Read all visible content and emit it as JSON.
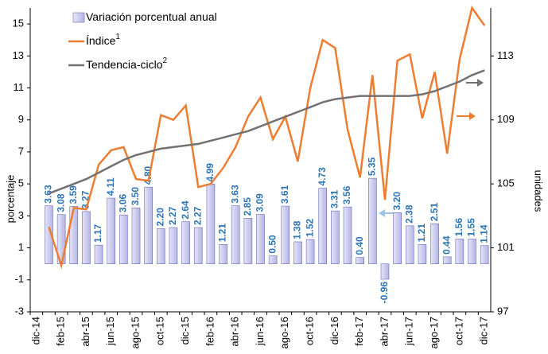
{
  "chart_data": {
    "type": "bar_line",
    "y_label": "porcentaje",
    "y2_label": "unidades",
    "categories": [
      "dic-14",
      null,
      "feb-15",
      null,
      "abr-15",
      null,
      "jun-15",
      null,
      "ago-15",
      null,
      "oct-15",
      null,
      "dic-15",
      null,
      "feb-16",
      null,
      "abr-16",
      null,
      "jun-16",
      null,
      "ago-16",
      null,
      "oct-16",
      null,
      "dic-16",
      null,
      "feb-17",
      null,
      "abr-17",
      null,
      "jun-17",
      null,
      "ago-17",
      null,
      "oct-17",
      null,
      "dic-17"
    ],
    "ylim": [
      -3,
      16
    ],
    "yticks": [
      -3,
      -1,
      1,
      3,
      5,
      7,
      9,
      11,
      13,
      15
    ],
    "y2lim": [
      97,
      116
    ],
    "y2ticks": [
      97,
      101,
      105,
      109,
      113
    ],
    "series": [
      {
        "name": "Variación porcentual anual",
        "kind": "bar",
        "color": "#b4b4e6",
        "values": [
          null,
          3.63,
          3.08,
          3.59,
          3.27,
          1.17,
          4.11,
          3.06,
          3.5,
          4.8,
          2.2,
          2.27,
          2.64,
          2.27,
          4.99,
          1.21,
          3.63,
          2.85,
          3.09,
          0.5,
          3.61,
          1.38,
          1.52,
          4.73,
          3.31,
          3.56,
          0.4,
          5.35,
          -0.96,
          3.2,
          2.38,
          1.21,
          2.51,
          0.44,
          1.56,
          1.55,
          1.14
        ],
        "value_labels": [
          null,
          "3.63",
          "3.08",
          "3.59",
          "3.27",
          "1.17",
          "4.11",
          "3.06",
          "3.50",
          "4.80",
          "2.20",
          "2.27",
          "2.64",
          "2.27",
          "4.99",
          "1.21",
          "3.63",
          "2.85",
          "3.09",
          "0.50",
          "3.61",
          "1.38",
          "1.52",
          "4.73",
          "3.31",
          "3.56",
          "0.40",
          "5.35",
          "-0.96",
          "3.20",
          "2.38",
          "1.21",
          "2.51",
          "0.44",
          "1.56",
          "1.55",
          "1.14"
        ]
      },
      {
        "name": "Índice",
        "superscript": "1",
        "kind": "line",
        "axis": "y2",
        "color": "#ed7d31",
        "values": [
          null,
          102.3,
          99.9,
          103.5,
          103.4,
          106.2,
          107.1,
          107.3,
          105.3,
          105.2,
          109.3,
          109.0,
          109.9,
          104.8,
          105.0,
          106.0,
          107.3,
          109.2,
          110.4,
          107.8,
          109.2,
          106.4,
          111.0,
          114.0,
          113.5,
          108.4,
          105.4,
          111.8,
          104.0,
          112.7,
          113.1,
          109.1,
          112.0,
          106.9,
          112.8,
          116.0,
          114.9
        ]
      },
      {
        "name": "Tendencia-ciclo",
        "superscript": "2",
        "kind": "line",
        "axis": "y2",
        "color": "#767171",
        "values": [
          null,
          104.4,
          104.7,
          105.0,
          105.3,
          105.7,
          106.1,
          106.5,
          106.8,
          107.0,
          107.2,
          107.3,
          107.4,
          107.5,
          107.7,
          107.9,
          108.1,
          108.3,
          108.6,
          108.9,
          109.2,
          109.5,
          109.8,
          110.1,
          110.3,
          110.4,
          110.5,
          110.5,
          110.5,
          110.5,
          110.5,
          110.6,
          110.8,
          111.1,
          111.4,
          111.8,
          112.1
        ]
      }
    ]
  }
}
